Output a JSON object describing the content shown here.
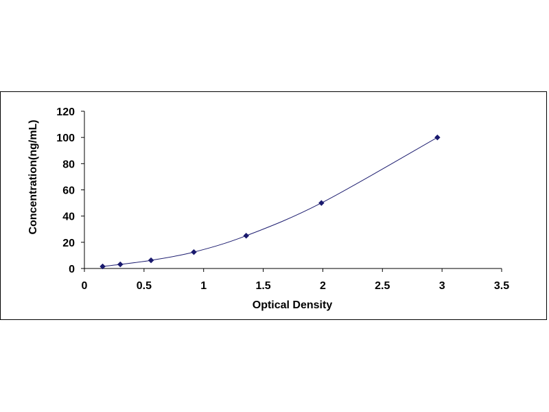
{
  "chart_data": {
    "type": "scatter",
    "title": "",
    "xlabel": "Optical Density",
    "ylabel": "Concentration(ng/mL)",
    "xlim": [
      0,
      3.5
    ],
    "ylim": [
      0,
      120
    ],
    "x_ticks": [
      "0",
      "0.5",
      "1",
      "1.5",
      "2",
      "2.5",
      "3",
      "3.5"
    ],
    "y_ticks": [
      "0",
      "20",
      "40",
      "60",
      "80",
      "100",
      "120"
    ],
    "grid": false,
    "legend": "none",
    "series": [
      {
        "points": [
          {
            "x": 0.153,
            "y": 1.56
          },
          {
            "x": 0.301,
            "y": 3.13
          },
          {
            "x": 0.559,
            "y": 6.25
          },
          {
            "x": 0.918,
            "y": 12.5
          },
          {
            "x": 1.357,
            "y": 25
          },
          {
            "x": 1.988,
            "y": 50
          },
          {
            "x": 2.961,
            "y": 100
          }
        ],
        "marker": "diamond",
        "marker_color": "#1a1a6e",
        "fit_line": "smooth-curve",
        "line_color": "#1a1a6e"
      }
    ]
  }
}
